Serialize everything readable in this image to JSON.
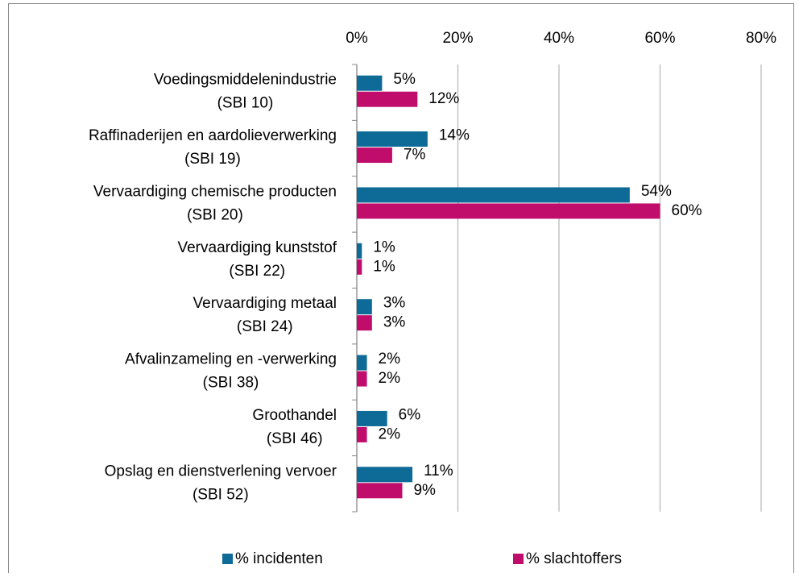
{
  "chart_data": {
    "type": "bar",
    "orientation": "horizontal",
    "categories": [
      [
        "Voedingsmiddelenindustrie",
        "(SBI 10)"
      ],
      [
        "Raffinaderijen en aardolieverwerking",
        "(SBI 19)"
      ],
      [
        "Vervaardiging chemische producten",
        "(SBI 20)"
      ],
      [
        "Vervaardiging kunststof",
        "(SBI 22)"
      ],
      [
        "Vervaardiging metaal",
        "(SBI 24)"
      ],
      [
        "Afvalinzameling en -verwerking",
        "(SBI 38)"
      ],
      [
        "Groothandel",
        "(SBI 46)"
      ],
      [
        "Opslag en dienstverlening vervoer",
        "(SBI 52)"
      ]
    ],
    "series": [
      {
        "name": "% incidenten",
        "color": "#0e6a96",
        "values": [
          5,
          14,
          54,
          1,
          3,
          2,
          6,
          11
        ],
        "value_labels": [
          "5%",
          "14%",
          "54%",
          "1%",
          "3%",
          "2%",
          "6%",
          "11%"
        ]
      },
      {
        "name": "% slachtoffers",
        "color": "#c00d6b",
        "values": [
          12,
          7,
          60,
          1,
          3,
          2,
          2,
          9
        ],
        "value_labels": [
          "12%",
          "7%",
          "60%",
          "1%",
          "3%",
          "2%",
          "2%",
          "9%"
        ]
      }
    ],
    "xlim": [
      0,
      80
    ],
    "xticks": [
      {
        "value": 0,
        "label": "0%"
      },
      {
        "value": 20,
        "label": "20%"
      },
      {
        "value": 40,
        "label": "40%"
      },
      {
        "value": 60,
        "label": "60%"
      },
      {
        "value": 80,
        "label": "80%"
      }
    ],
    "grid": true,
    "legend": "bottom"
  }
}
